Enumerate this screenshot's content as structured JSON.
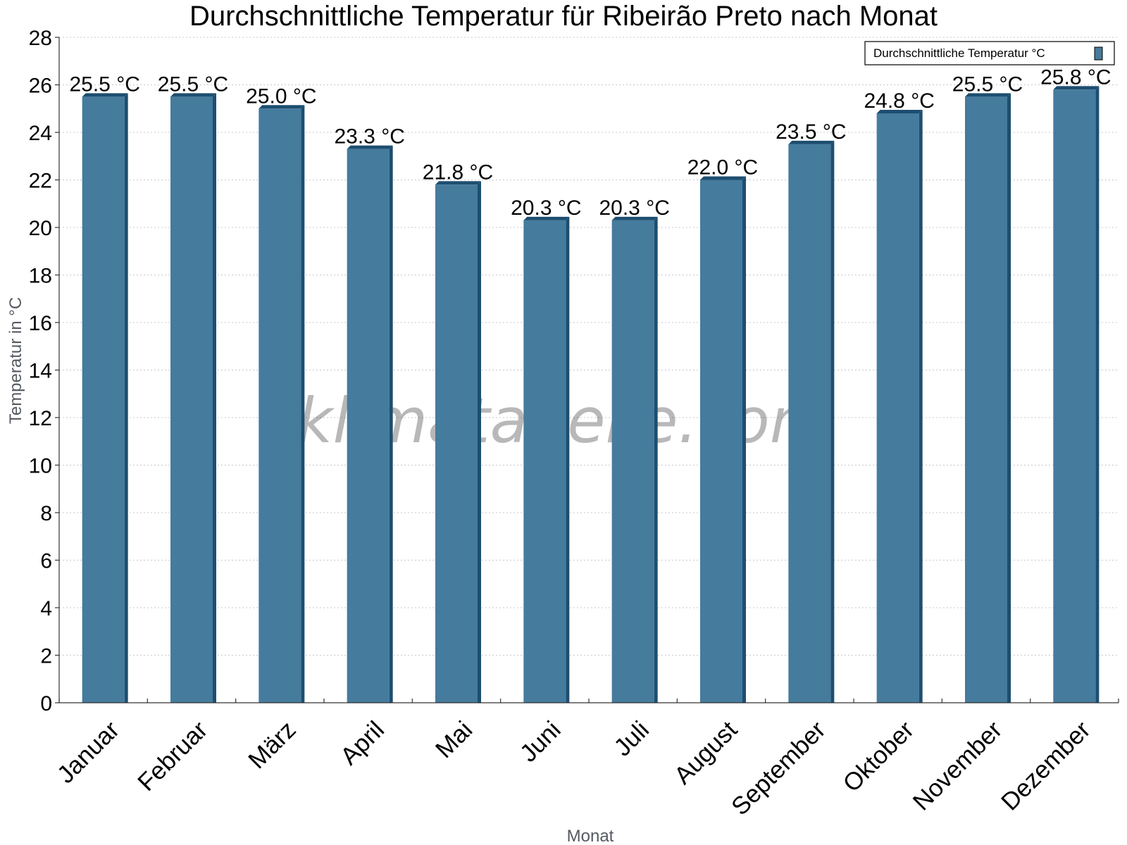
{
  "chart_data": {
    "type": "bar",
    "title": "Durchschnittliche Temperatur für Ribeirão Preto nach Monat",
    "xlabel": "Monat",
    "ylabel": "Temperatur in °C",
    "ylim": [
      0,
      28
    ],
    "ytick_step": 2,
    "grid": true,
    "legend_position": "top-right",
    "categories": [
      "Januar",
      "Februar",
      "März",
      "April",
      "Mai",
      "Juni",
      "Juli",
      "August",
      "September",
      "Oktober",
      "November",
      "Dezember"
    ],
    "series": [
      {
        "name": "Durchschnittliche Temperatur °C",
        "values": [
          25.5,
          25.5,
          25.0,
          23.3,
          21.8,
          20.3,
          20.3,
          22.0,
          23.5,
          24.8,
          25.5,
          25.8
        ],
        "color": "#457b9d",
        "side_color": "#1d4e70"
      }
    ],
    "value_unit": "°C"
  },
  "watermark": "klimatabelle.com"
}
